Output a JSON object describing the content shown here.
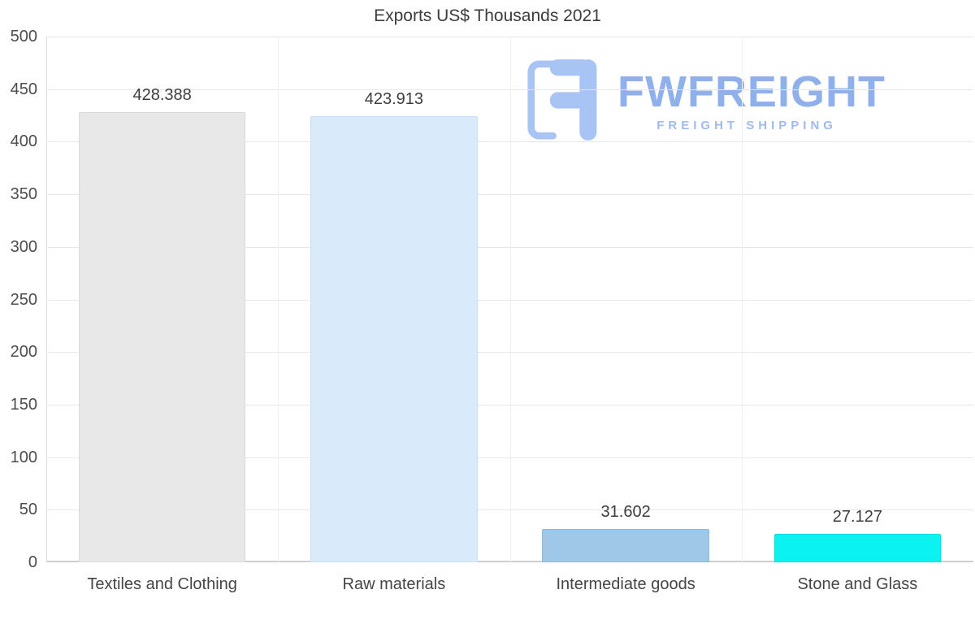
{
  "page": {
    "background": "#ffffff"
  },
  "chart_data": {
    "type": "bar",
    "title": "Exports US$ Thousands 2021",
    "categories": [
      "Textiles and Clothing",
      "Raw materials",
      "Intermediate goods",
      "Stone and Glass"
    ],
    "values": [
      428.388,
      423.913,
      31.602,
      27.127
    ],
    "value_labels": [
      "428.388",
      "423.913",
      "31.602",
      "27.127"
    ],
    "bar_colors": [
      "#e8e8e8",
      "#d9eafb",
      "#9ec7e8",
      "#0af2f2"
    ],
    "bar_border_colors": [
      "#dadada",
      "#c9def4",
      "#8db8dd",
      "#08dede"
    ],
    "ylim": [
      0,
      500
    ],
    "yticks": [
      0,
      50,
      100,
      150,
      200,
      250,
      300,
      350,
      400,
      450,
      500
    ],
    "grid": "horizontal",
    "legend": "none",
    "xlabel": "",
    "ylabel": ""
  },
  "watermark": {
    "brand": "FWFREIGHT",
    "tagline": "FREIGHT SHIPPING",
    "color": "#8fb0ea"
  }
}
